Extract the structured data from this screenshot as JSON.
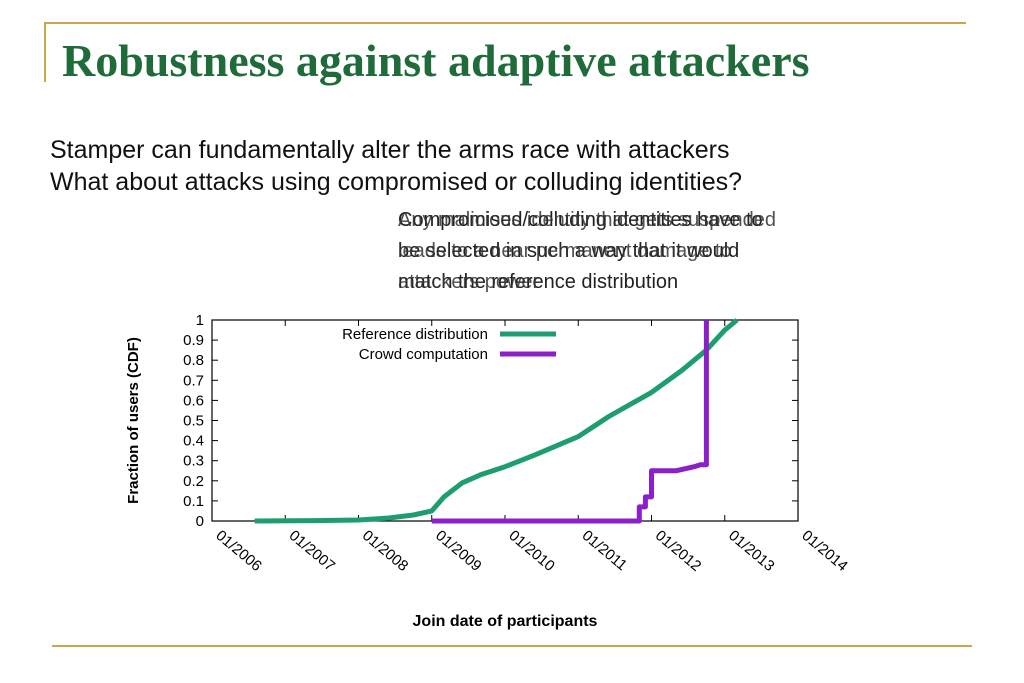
{
  "slide": {
    "title": "Robustness against adaptive attackers",
    "bullets": [
      "Stamper can fundamentally alter the arms race with attackers",
      "What about attacks using compromised or colluding identities?"
    ],
    "overlay_text_a": [
      "Compromised/colluding identities have to",
      "be selected in such a way that it would",
      "match the reference distribution"
    ],
    "overlay_text_b": [
      "Any malicious identity that gets suspended",
      "leads to a near permanent damage to",
      "attackers power"
    ]
  },
  "colors": {
    "title": "#1f6b3a",
    "rule": "#c9a84a",
    "reference_series": "#1e9e6e",
    "crowd_series": "#8b1fc9"
  },
  "chart_data": {
    "type": "line",
    "title": "",
    "xlabel": "Join date of participants",
    "ylabel": "Fraction of users (CDF)",
    "xlim": [
      "01/2006",
      "01/2014"
    ],
    "ylim": [
      0,
      1
    ],
    "x_ticks": [
      "01/2006",
      "01/2007",
      "01/2008",
      "01/2009",
      "01/2010",
      "01/2011",
      "01/2012",
      "01/2013",
      "01/2014"
    ],
    "y_ticks": [
      "0",
      "0.1",
      "0.2",
      "0.3",
      "0.4",
      "0.5",
      "0.6",
      "0.7",
      "0.8",
      "0.9",
      "1"
    ],
    "legend_position": "top-left",
    "grid": false,
    "series": [
      {
        "name": "Reference distribution",
        "color": "#1e9e6e",
        "points": [
          [
            "2006-08",
            0.0
          ],
          [
            "2007-06",
            0.002
          ],
          [
            "2008-01",
            0.005
          ],
          [
            "2008-06",
            0.015
          ],
          [
            "2008-10",
            0.03
          ],
          [
            "2009-01",
            0.05
          ],
          [
            "2009-03",
            0.12
          ],
          [
            "2009-06",
            0.19
          ],
          [
            "2009-09",
            0.23
          ],
          [
            "2010-01",
            0.27
          ],
          [
            "2010-06",
            0.33
          ],
          [
            "2011-01",
            0.42
          ],
          [
            "2011-06",
            0.52
          ],
          [
            "2012-01",
            0.64
          ],
          [
            "2012-06",
            0.75
          ],
          [
            "2012-10",
            0.85
          ],
          [
            "2013-01",
            0.95
          ],
          [
            "2013-03",
            1.0
          ]
        ]
      },
      {
        "name": "Crowd computation",
        "color": "#8b1fc9",
        "points": [
          [
            "2009-01",
            0.0
          ],
          [
            "2011-11",
            0.0
          ],
          [
            "2011-11",
            0.07
          ],
          [
            "2011-12",
            0.07
          ],
          [
            "2011-12",
            0.12
          ],
          [
            "2012-01",
            0.12
          ],
          [
            "2012-01",
            0.25
          ],
          [
            "2012-05",
            0.25
          ],
          [
            "2012-08",
            0.27
          ],
          [
            "2012-09",
            0.28
          ],
          [
            "2012-10",
            0.28
          ],
          [
            "2012-10",
            0.95
          ],
          [
            "2012-10",
            1.0
          ]
        ]
      }
    ]
  }
}
